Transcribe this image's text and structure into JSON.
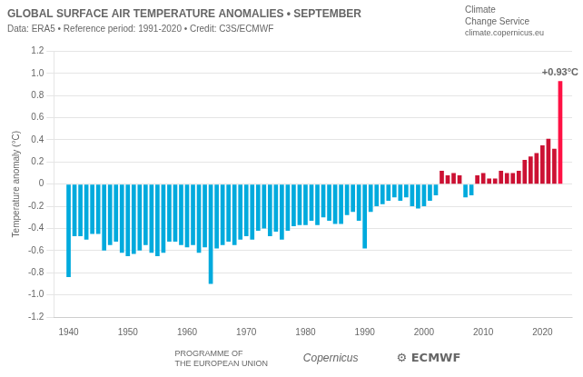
{
  "chart_data": {
    "type": "bar",
    "title": "GLOBAL SURFACE AIR TEMPERATURE ANOMALIES • SEPTEMBER",
    "subtitle": "Data: ERA5 • Reference period: 1991-2020 • Credit: C3S/ECMWF",
    "ylabel": "Temperature anomaly (°C)",
    "x": [
      1940,
      1941,
      1942,
      1943,
      1944,
      1945,
      1946,
      1947,
      1948,
      1949,
      1950,
      1951,
      1952,
      1953,
      1954,
      1955,
      1956,
      1957,
      1958,
      1959,
      1960,
      1961,
      1962,
      1963,
      1964,
      1965,
      1966,
      1967,
      1968,
      1969,
      1970,
      1971,
      1972,
      1973,
      1974,
      1975,
      1976,
      1977,
      1978,
      1979,
      1980,
      1981,
      1982,
      1983,
      1984,
      1985,
      1986,
      1987,
      1988,
      1989,
      1990,
      1991,
      1992,
      1993,
      1994,
      1995,
      1996,
      1997,
      1998,
      1999,
      2000,
      2001,
      2002,
      2003,
      2004,
      2005,
      2006,
      2007,
      2008,
      2009,
      2010,
      2011,
      2012,
      2013,
      2014,
      2015,
      2016,
      2017,
      2018,
      2019,
      2020,
      2021,
      2022,
      2023
    ],
    "values": [
      -0.84,
      -0.47,
      -0.47,
      -0.5,
      -0.45,
      -0.45,
      -0.6,
      -0.55,
      -0.52,
      -0.62,
      -0.65,
      -0.63,
      -0.6,
      -0.55,
      -0.62,
      -0.65,
      -0.62,
      -0.52,
      -0.52,
      -0.55,
      -0.57,
      -0.55,
      -0.62,
      -0.57,
      -0.9,
      -0.58,
      -0.55,
      -0.52,
      -0.55,
      -0.5,
      -0.47,
      -0.5,
      -0.42,
      -0.4,
      -0.47,
      -0.43,
      -0.5,
      -0.42,
      -0.38,
      -0.37,
      -0.37,
      -0.33,
      -0.37,
      -0.3,
      -0.33,
      -0.36,
      -0.36,
      -0.28,
      -0.25,
      -0.33,
      -0.58,
      -0.25,
      -0.2,
      -0.18,
      -0.15,
      -0.12,
      -0.15,
      -0.12,
      -0.2,
      -0.22,
      -0.2,
      -0.15,
      -0.1,
      0.12,
      0.08,
      0.1,
      0.08,
      -0.12,
      -0.1,
      0.08,
      0.1,
      0.05,
      0.05,
      0.12,
      0.1,
      0.1,
      0.12,
      0.22,
      0.25,
      0.28,
      0.35,
      0.41,
      0.32,
      0.93
    ],
    "colors": [
      "#00aadd",
      "#00aadd",
      "#00aadd",
      "#00aadd",
      "#00aadd",
      "#00aadd",
      "#00aadd",
      "#00aadd",
      "#00aadd",
      "#00aadd",
      "#00aadd",
      "#00aadd",
      "#00aadd",
      "#00aadd",
      "#00aadd",
      "#00aadd",
      "#00aadd",
      "#00aadd",
      "#00aadd",
      "#00aadd",
      "#00aadd",
      "#00aadd",
      "#00aadd",
      "#00aadd",
      "#00aadd",
      "#00aadd",
      "#00aadd",
      "#00aadd",
      "#00aadd",
      "#00aadd",
      "#00aadd",
      "#00aadd",
      "#00aadd",
      "#00aadd",
      "#00aadd",
      "#00aadd",
      "#00aadd",
      "#00aadd",
      "#00aadd",
      "#00aadd",
      "#00aadd",
      "#00aadd",
      "#00aadd",
      "#00aadd",
      "#00aadd",
      "#00aadd",
      "#00aadd",
      "#00aadd",
      "#00aadd",
      "#00aadd",
      "#00aadd",
      "#00aadd",
      "#00aadd",
      "#00aadd",
      "#00aadd",
      "#00aadd",
      "#00aadd",
      "#00aadd",
      "#00aadd",
      "#00aadd",
      "#00aadd",
      "#00aadd",
      "#00aadd",
      "#cc1133",
      "#cc1133",
      "#cc1133",
      "#cc1133",
      "#00aadd",
      "#00aadd",
      "#cc1133",
      "#cc1133",
      "#cc1133",
      "#cc1133",
      "#cc1133",
      "#cc1133",
      "#cc1133",
      "#cc1133",
      "#cc1133",
      "#cc1133",
      "#cc1133",
      "#cc1133",
      "#cc1133",
      "#cc1133",
      "#ff1144"
    ],
    "xlim": [
      1937.5,
      2025
    ],
    "xticks": [
      1940,
      1950,
      1960,
      1970,
      1980,
      1990,
      2000,
      2010,
      2020
    ],
    "ylim": [
      -1.2,
      1.2
    ],
    "yticks": [
      -1.2,
      {
        "value": -1.0,
        "label": "-1.0"
      },
      -0.8,
      -0.6,
      -0.4,
      -0.2,
      0,
      0.2,
      0.4,
      0.6,
      0.8,
      {
        "value": 1.0,
        "label": "1.0"
      },
      1.2
    ],
    "grid": "y",
    "annotations": [
      {
        "text": "+0.93°C",
        "x": 2023,
        "y": 0.93
      },
      {
        "text": "Climate"
      },
      {
        "text": "Change Service"
      },
      {
        "text": "climate.copernicus.eu"
      },
      {
        "text": "PROGRAMME OF\nTHE EUROPEAN UNION"
      },
      {
        "text": "Copernicus"
      },
      {
        "text": "⚙ ECMWF"
      }
    ]
  }
}
